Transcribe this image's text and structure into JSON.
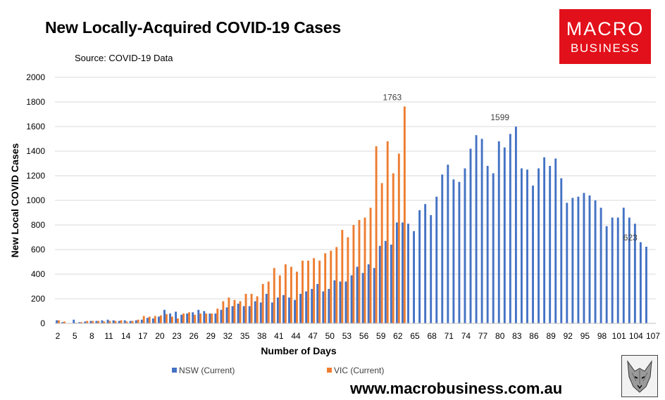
{
  "header": {
    "title": "New Locally-Acquired COVID-19 Cases",
    "source": "Source: COVID-19 Data"
  },
  "logo": {
    "line1": "MACRO",
    "line2": "BUSINESS"
  },
  "footer": {
    "url": "www.macrobusiness.com.au"
  },
  "colors": {
    "nsw": "#4472c4",
    "vic": "#ed7d31",
    "grid": "#d9d9d9",
    "brand": "#e2101a"
  },
  "chart_data": {
    "type": "bar",
    "title": "New Locally-Acquired COVID-19 Cases",
    "xlabel": "Number of Days",
    "ylabel": "New Local COVID Cases",
    "ylim": [
      0,
      2000
    ],
    "yticks": [
      0,
      200,
      400,
      600,
      800,
      1000,
      1200,
      1400,
      1600,
      1800,
      2000
    ],
    "xlim": [
      2,
      107
    ],
    "xticks": [
      2,
      5,
      8,
      11,
      14,
      17,
      20,
      23,
      26,
      29,
      32,
      35,
      38,
      41,
      44,
      47,
      50,
      53,
      56,
      59,
      62,
      65,
      68,
      71,
      74,
      77,
      80,
      83,
      86,
      89,
      92,
      95,
      98,
      101,
      104,
      107
    ],
    "grid": true,
    "legend_position": "bottom",
    "series": [
      {
        "name": "NSW (Current)",
        "start_day": 2,
        "values": [
          25,
          10,
          0,
          30,
          10,
          15,
          20,
          20,
          25,
          30,
          25,
          20,
          25,
          20,
          25,
          30,
          45,
          40,
          55,
          110,
          80,
          95,
          70,
          80,
          90,
          110,
          100,
          80,
          80,
          110,
          130,
          140,
          160,
          140,
          140,
          180,
          170,
          240,
          170,
          210,
          230,
          210,
          190,
          240,
          260,
          280,
          320,
          260,
          280,
          350,
          340,
          340,
          390,
          460,
          410,
          480,
          450,
          630,
          670,
          640,
          820,
          820,
          810,
          750,
          920,
          970,
          880,
          1030,
          1210,
          1290,
          1170,
          1150,
          1260,
          1420,
          1530,
          1500,
          1280,
          1220,
          1480,
          1430,
          1540,
          1599,
          1260,
          1250,
          1120,
          1260,
          1350,
          1280,
          1340,
          1180,
          980,
          1020,
          1030,
          1060,
          1040,
          1000,
          940,
          790,
          860,
          860,
          940,
          860,
          810,
          660,
          623
        ]
      },
      {
        "name": "VIC (Current)",
        "start_day": 2,
        "values": [
          25,
          15,
          0,
          5,
          10,
          20,
          20,
          20,
          15,
          20,
          20,
          25,
          15,
          20,
          30,
          60,
          55,
          60,
          65,
          75,
          55,
          40,
          80,
          90,
          70,
          80,
          80,
          80,
          120,
          180,
          210,
          190,
          180,
          240,
          240,
          220,
          320,
          340,
          450,
          390,
          480,
          460,
          420,
          510,
          510,
          530,
          510,
          570,
          590,
          620,
          760,
          700,
          800,
          840,
          860,
          940,
          1440,
          1140,
          1480,
          1220,
          1380,
          1763
        ]
      }
    ],
    "annotations": [
      {
        "day": 61,
        "value": 1763,
        "label": "1763"
      },
      {
        "day": 80,
        "value": 1599,
        "label": "1599"
      },
      {
        "day": 103,
        "value": 623,
        "label": "623"
      }
    ]
  }
}
